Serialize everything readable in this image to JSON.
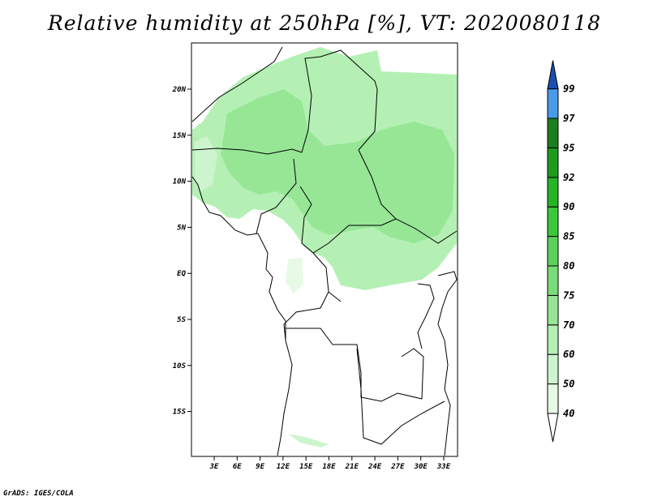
{
  "title": "Relative humidity at 250hPa [%], VT: 2020080118",
  "credit": "GrADS: IGES/COLA",
  "map": {
    "lat_labels": [
      "20N",
      "15N",
      "10N",
      "5N",
      "EQ",
      "5S",
      "10S",
      "15S"
    ],
    "lon_labels": [
      "3E",
      "6E",
      "9E",
      "12E",
      "15E",
      "18E",
      "21E",
      "24E",
      "27E",
      "30E",
      "33E"
    ]
  },
  "colorbar": {
    "levels": [
      "40",
      "50",
      "60",
      "70",
      "75",
      "80",
      "85",
      "90",
      "92",
      "95",
      "97",
      "99"
    ],
    "colors": [
      "#e6fae6",
      "#cdf5cd",
      "#b4f0b4",
      "#96e696",
      "#78dc78",
      "#5ad25a",
      "#3cc83c",
      "#28b428",
      "#1e9b1e",
      "#1c7f1c",
      "#4a9ae8",
      "#2a72d8",
      "#1a4fb0"
    ]
  }
}
